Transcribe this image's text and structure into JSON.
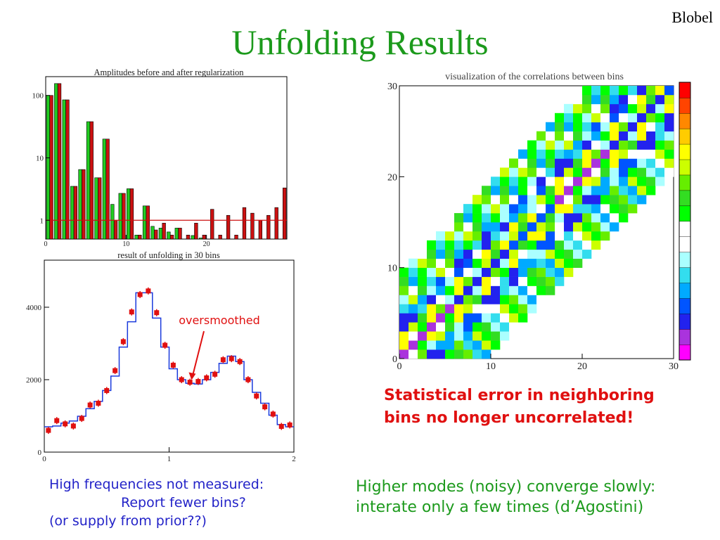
{
  "slide": {
    "title": "Unfolding Results",
    "author": "Blobel"
  },
  "captions": {
    "left_line1": "High frequencies not measured:",
    "left_line2": "Report fewer bins?",
    "left_line3": "(or supply from prior??)",
    "right_line1": "Higher modes (noisy) converge slowly:",
    "right_line2": "interate only a few times (d’Agostini)",
    "red_line1": "Statistical error in neighboring",
    "red_line2": "bins no longer uncorrelated!"
  },
  "colors": {
    "title": "#1c9a1c",
    "bar_before": "#22cc22",
    "bar_after": "#cc1111",
    "line": "#1a3adc",
    "points": "#e01010",
    "annotation": "#e01010",
    "caption_blue": "#2323c8"
  },
  "chart_data": [
    {
      "type": "bar",
      "title": "Amplitudes before and after regularization",
      "yscale": "log",
      "xlim": [
        0,
        30
      ],
      "ylim": [
        0.5,
        200
      ],
      "x_ticks": [
        "0",
        "10",
        "20"
      ],
      "y_ticks": [
        "1",
        "10",
        "100"
      ],
      "reference_line": 1,
      "series": [
        {
          "values": [
            100,
            155,
            85,
            3.5,
            6.5,
            38,
            4.8,
            20,
            1.8,
            2.7,
            3.2,
            0.58,
            1.7,
            0.8,
            0.75,
            0.65,
            0.75,
            0.5,
            0.57,
            0.52,
            0.5,
            0.5,
            0.5,
            0.5,
            0.5,
            0.5,
            0.5,
            0.5,
            0.5,
            0.5
          ]
        },
        {
          "values": [
            100,
            155,
            85,
            3.5,
            6.5,
            38,
            4.8,
            20,
            1.0,
            2.7,
            3.2,
            0.58,
            1.7,
            0.7,
            0.9,
            0.58,
            0.75,
            0.58,
            0.9,
            0.58,
            1.5,
            0.58,
            1.2,
            0.58,
            1.6,
            1.3,
            1.0,
            1.2,
            1.6,
            3.3
          ]
        }
      ]
    },
    {
      "type": "line",
      "title": "result of unfolding in 30 bins",
      "xlim": [
        0,
        2
      ],
      "ylim": [
        0,
        5300
      ],
      "x_ticks": [
        "0",
        "1",
        "2"
      ],
      "y_ticks": [
        "0",
        "2000",
        "4000"
      ],
      "annotation": "oversmoothed",
      "annotation_target": {
        "x": 1.18,
        "y": 1950
      },
      "series": [
        {
          "x": [
            0.033,
            0.1,
            0.167,
            0.233,
            0.3,
            0.367,
            0.433,
            0.5,
            0.567,
            0.633,
            0.7,
            0.767,
            0.833,
            0.9,
            0.967,
            1.033,
            1.1,
            1.167,
            1.233,
            1.3,
            1.367,
            1.433,
            1.5,
            1.567,
            1.633,
            1.7,
            1.767,
            1.833,
            1.9,
            1.967
          ],
          "y": [
            700,
            720,
            800,
            860,
            990,
            1200,
            1400,
            1700,
            2100,
            2900,
            3600,
            4400,
            4400,
            3700,
            2900,
            2300,
            2000,
            1900,
            1880,
            2000,
            2200,
            2450,
            2650,
            2500,
            2000,
            1650,
            1350,
            1020,
            760,
            700
          ]
        },
        {
          "x": [
            0.033,
            0.1,
            0.167,
            0.233,
            0.3,
            0.367,
            0.433,
            0.5,
            0.567,
            0.633,
            0.7,
            0.767,
            0.833,
            0.9,
            0.967,
            1.033,
            1.1,
            1.167,
            1.233,
            1.3,
            1.367,
            1.433,
            1.5,
            1.567,
            1.633,
            1.7,
            1.767,
            1.833,
            1.9,
            1.967
          ],
          "y": [
            600,
            870,
            780,
            720,
            930,
            1300,
            1350,
            1700,
            2250,
            3050,
            3870,
            4350,
            4450,
            3850,
            2950,
            2400,
            2000,
            1930,
            1950,
            2050,
            2150,
            2550,
            2580,
            2500,
            2000,
            1550,
            1250,
            1050,
            710,
            750
          ]
        }
      ]
    },
    {
      "type": "heatmap",
      "title": "visualization of the correlations between bins",
      "xlim": [
        0,
        30
      ],
      "ylim": [
        0,
        30
      ],
      "x_ticks": [
        "0",
        "10",
        "20",
        "30"
      ],
      "y_ticks": [
        "0",
        "10",
        "20",
        "30"
      ],
      "grid_size": 30,
      "band_halfwidth": 9,
      "colorscale": [
        "#ff00ff",
        "#aa33dd",
        "#2222ee",
        "#0055ff",
        "#00aaff",
        "#33ddee",
        "#aaffff",
        "#ffffff",
        "#ffffff",
        "#00ff00",
        "#33dd22",
        "#66ee00",
        "#ccff00",
        "#ffff00",
        "#ffcc00",
        "#ff8800",
        "#ff4400",
        "#ff0000"
      ]
    }
  ]
}
